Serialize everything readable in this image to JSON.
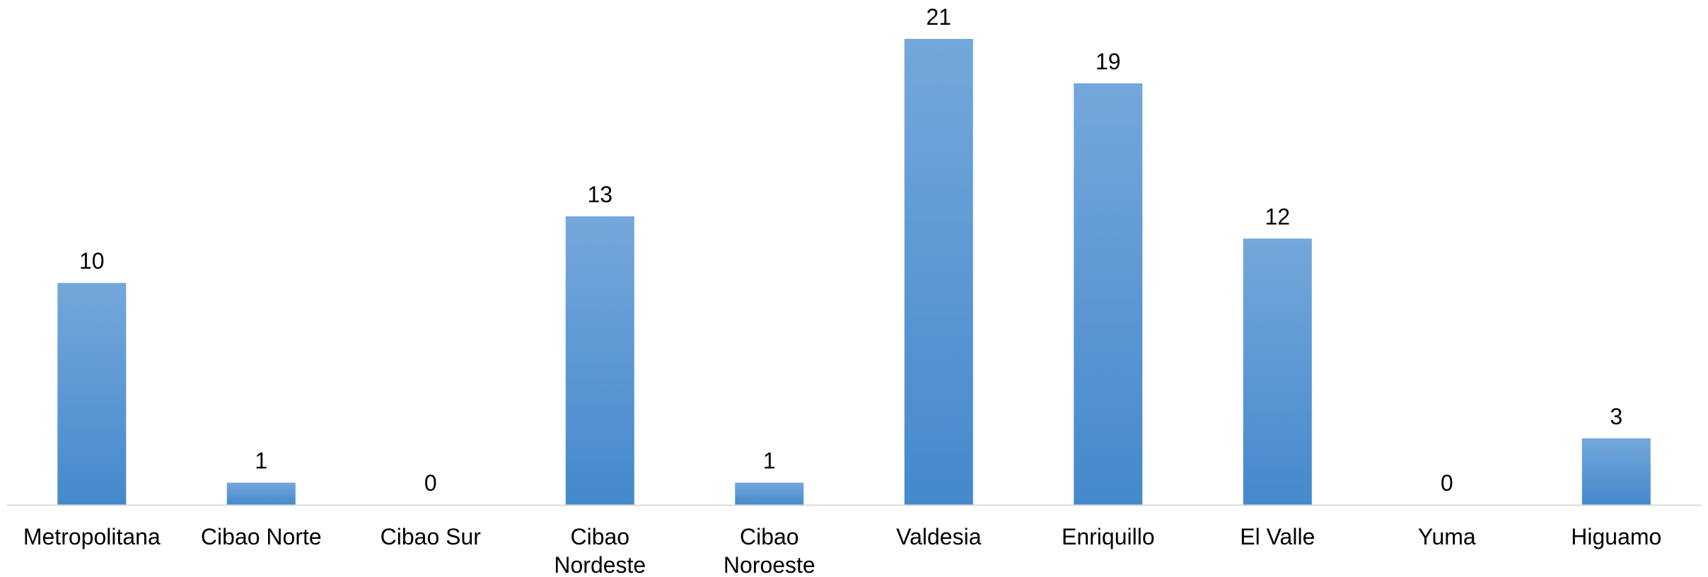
{
  "chart_data": {
    "type": "bar",
    "title": "",
    "xlabel": "",
    "ylabel": "",
    "categories": [
      "Metropolitana",
      "Cibao Norte",
      "Cibao Sur",
      "Cibao Nordeste",
      "Cibao Noroeste",
      "Valdesia",
      "Enriquillo",
      "El Valle",
      "Yuma",
      "Higuamo"
    ],
    "category_label_lines": [
      [
        "Metropolitana"
      ],
      [
        "Cibao Norte"
      ],
      [
        "Cibao Sur"
      ],
      [
        "Cibao",
        "Nordeste"
      ],
      [
        "Cibao",
        "Noroeste"
      ],
      [
        "Valdesia"
      ],
      [
        "Enriquillo"
      ],
      [
        "El Valle"
      ],
      [
        "Yuma"
      ],
      [
        "Higuamo"
      ]
    ],
    "values": [
      10,
      1,
      0,
      13,
      1,
      21,
      19,
      12,
      0,
      3
    ],
    "ylim": [
      0,
      21
    ],
    "data_labels": true,
    "grid": false,
    "legend": "none",
    "colors": {
      "bar_top": "#74a7db",
      "bar_bottom": "#4489cc",
      "axis_line": "#d9d9d9",
      "text": "#000000"
    }
  }
}
